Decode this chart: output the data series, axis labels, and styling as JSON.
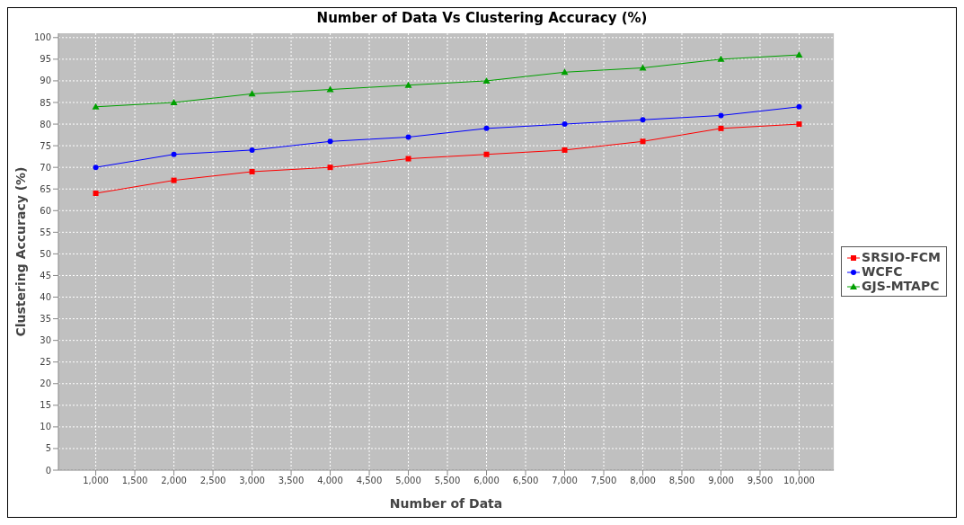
{
  "chart_data": {
    "type": "line",
    "title": "Number of Data Vs Clustering Accuracy (%)",
    "xlabel": "Number of Data",
    "ylabel": "Clustering Accuracy (%)",
    "x": [
      1000,
      2000,
      3000,
      4000,
      5000,
      6000,
      7000,
      8000,
      9000,
      10000
    ],
    "series": [
      {
        "name": "SRSIO-FCM",
        "color": "#ff0000",
        "marker": "square",
        "values": [
          64,
          67,
          69,
          70,
          72,
          73,
          74,
          76,
          79,
          80
        ]
      },
      {
        "name": "WCFC",
        "color": "#0000ff",
        "marker": "circle",
        "values": [
          70,
          73,
          74,
          76,
          77,
          79,
          80,
          81,
          82,
          84
        ]
      },
      {
        "name": "GJS-MTAPC",
        "color": "#00a000",
        "marker": "triangle",
        "values": [
          84,
          85,
          87,
          88,
          89,
          90,
          92,
          93,
          95,
          96
        ]
      }
    ],
    "xlim": [
      522,
      10444
    ],
    "xticks": [
      {
        "value": 1000,
        "label": "1,000"
      },
      {
        "value": 1500,
        "label": "1,500"
      },
      {
        "value": 2000,
        "label": "2,000"
      },
      {
        "value": 2500,
        "label": "2,500"
      },
      {
        "value": 3000,
        "label": "3,000"
      },
      {
        "value": 3500,
        "label": "3,500"
      },
      {
        "value": 4000,
        "label": "4,000"
      },
      {
        "value": 4500,
        "label": "4,500"
      },
      {
        "value": 5000,
        "label": "5,000"
      },
      {
        "value": 5500,
        "label": "5,500"
      },
      {
        "value": 6000,
        "label": "6,000"
      },
      {
        "value": 6500,
        "label": "6,500"
      },
      {
        "value": 7000,
        "label": "7,000"
      },
      {
        "value": 7500,
        "label": "7,500"
      },
      {
        "value": 8000,
        "label": "8,000"
      },
      {
        "value": 8500,
        "label": "8,500"
      },
      {
        "value": 9000,
        "label": "9,000"
      },
      {
        "value": 9500,
        "label": "9,500"
      },
      {
        "value": 10000,
        "label": "10,000"
      }
    ],
    "ylim": [
      0,
      101
    ],
    "yticks": [
      0,
      5,
      10,
      15,
      20,
      25,
      30,
      35,
      40,
      45,
      50,
      55,
      60,
      65,
      70,
      75,
      80,
      85,
      90,
      95,
      100
    ],
    "grid": true,
    "legend": "right"
  }
}
